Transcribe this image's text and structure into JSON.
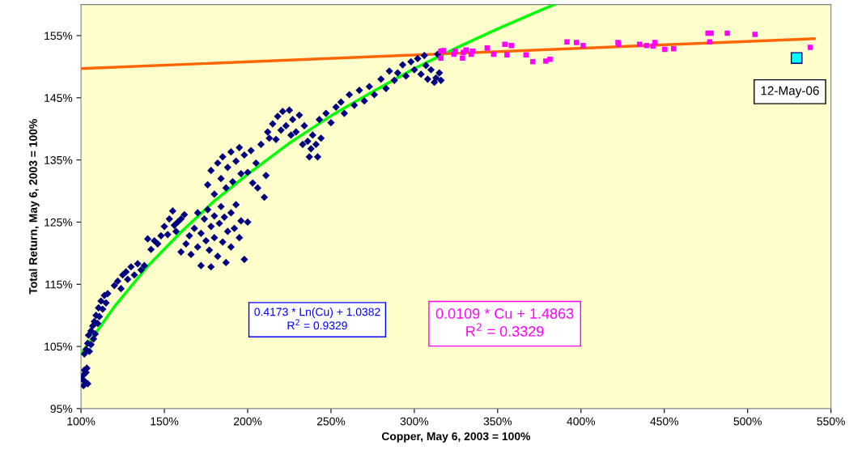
{
  "chart_data": {
    "type": "scatter",
    "xlabel": "Copper, May 6, 2003 = 100%",
    "ylabel": "Total Return, May 6, 2003 = 100%",
    "xlim": [
      100,
      550
    ],
    "ylim": [
      95,
      160
    ],
    "xticks": [
      {
        "value": 100,
        "label": "100%"
      },
      {
        "value": 150,
        "label": "150%"
      },
      {
        "value": 200,
        "label": "200%"
      },
      {
        "value": 250,
        "label": "250%"
      },
      {
        "value": 300,
        "label": "300%"
      },
      {
        "value": 350,
        "label": "350%"
      },
      {
        "value": 400,
        "label": "400%"
      },
      {
        "value": 450,
        "label": "450%"
      },
      {
        "value": 500,
        "label": "500%"
      },
      {
        "value": 550,
        "label": "550%"
      }
    ],
    "yticks": [
      {
        "value": 95,
        "label": "95%"
      },
      {
        "value": 105,
        "label": "105%"
      },
      {
        "value": 115,
        "label": "115%"
      },
      {
        "value": 125,
        "label": "125%"
      },
      {
        "value": 135,
        "label": "135%"
      },
      {
        "value": 145,
        "label": "145%"
      },
      {
        "value": 155,
        "label": "155%"
      }
    ],
    "grid": false,
    "legend": false,
    "series": [
      {
        "marker": "diamond",
        "color": "#000080",
        "x": [
          100.5,
          101,
          101.5,
          102.5,
          103,
          103.5,
          104,
          102,
          102,
          103,
          104,
          104.5,
          105,
          106,
          106,
          107,
          107.5,
          108,
          108.5,
          109,
          110,
          110.5,
          111,
          112,
          113,
          114,
          115,
          116,
          120,
          122,
          124,
          125,
          127,
          128,
          130,
          132,
          134,
          136,
          138,
          140,
          142,
          144,
          146,
          148,
          150,
          152,
          153,
          155,
          156,
          158,
          160,
          162,
          157,
          160,
          163,
          165,
          166,
          168,
          170,
          170,
          172,
          172,
          174,
          175,
          176,
          177,
          178,
          178,
          180,
          180,
          182,
          183,
          184,
          185,
          186,
          187,
          188,
          190,
          190,
          192,
          193,
          195,
          196,
          198,
          200,
          176,
          178,
          180,
          182,
          184,
          185,
          187,
          188,
          190,
          191,
          193,
          195,
          196,
          198,
          200,
          202,
          203,
          205,
          206,
          208,
          210,
          211,
          213,
          212,
          215,
          217,
          218,
          220,
          221,
          223,
          225,
          226,
          227,
          229,
          231,
          233,
          234,
          236,
          237,
          238,
          239,
          241,
          242,
          244,
          243,
          247,
          250,
          253,
          256,
          258,
          261,
          264,
          267,
          270,
          273,
          276,
          280,
          283,
          285,
          288,
          290,
          293,
          295,
          298,
          300,
          302,
          304,
          306,
          307,
          308,
          310,
          312,
          313,
          314,
          315,
          316
        ],
        "values": [
          99.8,
          100.3,
          98.7,
          99.3,
          100.8,
          101.5,
          99.0,
          101.2,
          103.8,
          104.5,
          105.5,
          106.8,
          104.2,
          107.5,
          105.3,
          108.3,
          106.2,
          109.0,
          107.0,
          110.0,
          108.7,
          111.2,
          109.8,
          112.3,
          111.0,
          113.2,
          112.0,
          113.5,
          114.8,
          115.5,
          114.3,
          116.5,
          117.0,
          115.8,
          117.8,
          116.5,
          118.3,
          117.3,
          118.0,
          122.3,
          120.6,
          122.0,
          121.5,
          122.8,
          124.3,
          123.0,
          125.5,
          126.8,
          124.5,
          125.0,
          125.5,
          126.2,
          123.5,
          120.2,
          121.5,
          122.8,
          119.8,
          124.0,
          121.0,
          126.5,
          123.2,
          118.0,
          125.5,
          122.0,
          127.0,
          120.5,
          124.3,
          117.8,
          126.0,
          122.5,
          119.5,
          124.8,
          127.5,
          121.8,
          125.8,
          118.5,
          123.5,
          126.5,
          121.0,
          124.0,
          127.8,
          122.5,
          125.2,
          119.0,
          125.0,
          131.0,
          133.3,
          129.5,
          134.5,
          132.0,
          135.5,
          130.5,
          133.8,
          136.3,
          131.5,
          134.8,
          137.0,
          132.8,
          135.8,
          133.0,
          136.5,
          131.3,
          134.5,
          130.5,
          137.5,
          129.0,
          132.5,
          138.5,
          139.5,
          140.8,
          138.3,
          142.0,
          139.8,
          142.8,
          140.5,
          143.0,
          139.0,
          141.5,
          139.5,
          142.2,
          137.5,
          140.5,
          138.0,
          135.5,
          136.8,
          139.0,
          137.5,
          135.5,
          138.5,
          141.5,
          142.5,
          141.0,
          143.5,
          144.3,
          142.5,
          145.5,
          143.8,
          146.2,
          144.5,
          146.8,
          145.5,
          148.0,
          146.5,
          149.3,
          147.8,
          149.0,
          150.3,
          148.5,
          150.8,
          149.5,
          151.3,
          148.8,
          151.8,
          150.2,
          148.0,
          149.5,
          147.5,
          148.2,
          152.0,
          149.0,
          147.8
        ]
      },
      {
        "marker": "square",
        "color": "#ff00ff",
        "x": [
          315.9,
          315.9,
          317.5,
          323.8,
          324.6,
          328.9,
          329.4,
          331.0,
          334.1,
          334.9,
          343.7,
          347.6,
          354.3,
          355.6,
          358.2,
          367.0,
          371.1,
          378.9,
          381.4,
          391.6,
          397.3,
          401.3,
          422.2,
          422.5,
          435.2,
          439.4,
          443.3,
          444.4,
          450.3,
          455.6,
          476.2,
          478.1,
          477.3,
          487.8,
          504.4,
          537.6
        ],
        "values": [
          152.5,
          151.4,
          152.6,
          152.0,
          152.5,
          151.4,
          152.3,
          152.7,
          152.0,
          152.5,
          153.0,
          152.0,
          153.6,
          151.9,
          153.4,
          151.9,
          150.8,
          150.9,
          151.2,
          154.0,
          153.9,
          153.4,
          153.9,
          153.6,
          153.6,
          153.4,
          153.3,
          153.9,
          152.8,
          152.9,
          155.4,
          155.4,
          154.0,
          155.4,
          155.2,
          153.1
        ]
      },
      {
        "marker": "square",
        "color": "#00ffff",
        "x": [
          529.4
        ],
        "values": [
          151.4
        ]
      },
      {
        "type": "line",
        "color": "#00ff00",
        "x": [
          100,
          120,
          140,
          160,
          180,
          200,
          225,
          250,
          275,
          300,
          325,
          350,
          375,
          384
        ],
        "values": [
          103.8,
          111.4,
          117.9,
          123.4,
          128.4,
          132.7,
          137.7,
          142.1,
          146.0,
          149.7,
          153.0,
          156.1,
          159.0,
          160.0
        ]
      },
      {
        "type": "line",
        "color": "#ff6600",
        "x": [
          100,
          540
        ],
        "values": [
          149.7,
          154.5
        ]
      }
    ],
    "annotations": [
      "0.4173 * Ln(Cu) + 1.0382\nR$^{2}$ = 0.9329",
      "0.0109 * Cu + 1.4863\nR$^{2}$ = 0.3329",
      {
        "text": "12-May-06",
        "x": 529.4,
        "y": 151.4
      }
    ]
  }
}
